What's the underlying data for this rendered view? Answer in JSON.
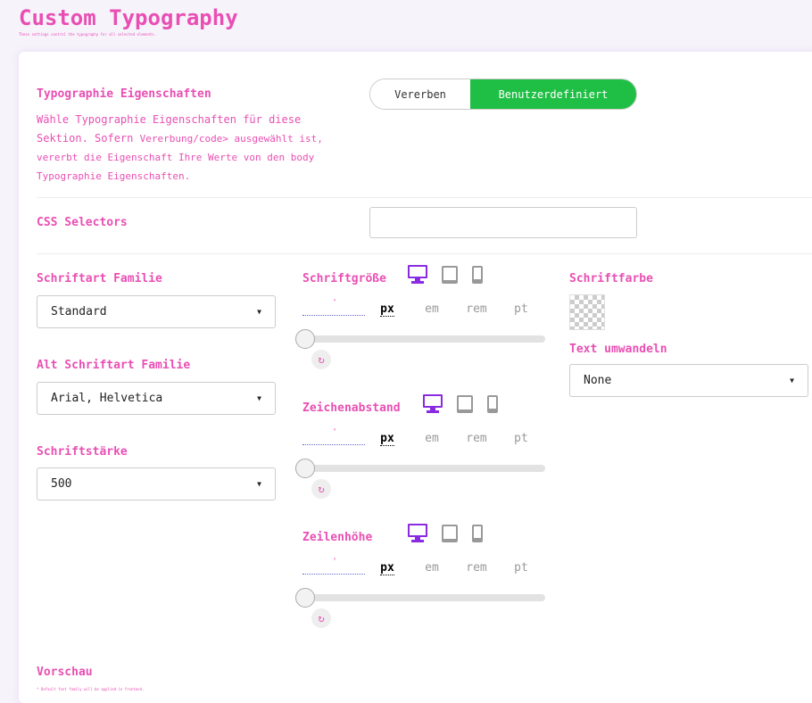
{
  "header": {
    "title": "Custom Typography",
    "subtitle": "These settings control the typography for all selected elements."
  },
  "props": {
    "label": "Typographie Eigenschaften",
    "desc1": "Wähle Typographie Eigenschaften für diese Sektion. Sofern ",
    "desc_code": "Vererbung/code> ausgewählt",
    "desc2": " ist, vererbt die Eigenschaft Ihre Werte von den body Typographie Eigenschaften.",
    "toggle": [
      "Vererben",
      "Benutzerdefiniert"
    ],
    "active": "Benutzerdefiniert"
  },
  "selectors": {
    "label": "CSS Selectors",
    "value": ""
  },
  "font_family": {
    "label": "Schriftart Familie",
    "value": "Standard"
  },
  "alt_font_family": {
    "label": "Alt Schriftart Familie",
    "value": "Arial, Helvetica"
  },
  "font_weight": {
    "label": "Schriftstärke",
    "value": "500"
  },
  "sliders": [
    {
      "label": "Schriftgröße",
      "units": [
        "px",
        "em",
        "rem",
        "pt"
      ],
      "unit": "px",
      "value": 0
    },
    {
      "label": "Zeichenabstand",
      "units": [
        "px",
        "em",
        "rem",
        "pt"
      ],
      "unit": "px",
      "value": 0
    },
    {
      "label": "Zeilenhöhe",
      "units": [
        "px",
        "em",
        "rem",
        "pt"
      ],
      "unit": "px",
      "value": 0
    }
  ],
  "devices": [
    "desktop-icon",
    "tablet-icon",
    "mobile-icon"
  ],
  "color": {
    "label": "Schriftfarbe"
  },
  "transform": {
    "label": "Text umwandeln",
    "value": "None"
  },
  "preview": {
    "label": "Vorschau",
    "note": "* Default font family will be applied in frontend."
  },
  "colors": {
    "accent": "#e94fb3",
    "active": "#1fbf45",
    "device": "#8a2be2"
  }
}
